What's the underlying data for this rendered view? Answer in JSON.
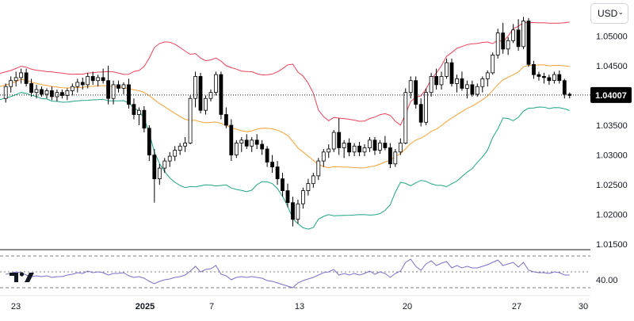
{
  "header": {
    "currency": "USD",
    "currency_icon": "chevron-down-icon"
  },
  "colors": {
    "up_candle": "#ffffff",
    "down_candle": "#000000",
    "candle_outline": "#000000",
    "bb_upper": "#e8415a",
    "bb_middle": "#f6a135",
    "bb_lower": "#1fa486",
    "rsi": "#7b6fc8",
    "last_price_tag": "#000000",
    "grid_dashed": "#555555"
  },
  "chart_data": [
    {
      "type": "candlestick",
      "instrument_quote": "USD",
      "y_axis_side": "right",
      "y_ticks": [
        "1.05000",
        "1.04500",
        "1.03500",
        "1.03000",
        "1.02500",
        "1.02000",
        "1.01500"
      ],
      "ylim": [
        1.0145,
        1.0555
      ],
      "last_price": "1.04007",
      "x_ticks": [
        "23",
        "2025",
        "7",
        "13",
        "20",
        "27",
        "30"
      ],
      "indicators": [
        "Bollinger Bands"
      ],
      "candles": [
        [
          1.0395,
          1.042,
          1.0388,
          1.0415
        ],
        [
          1.0415,
          1.0432,
          1.0405,
          1.0425
        ],
        [
          1.0425,
          1.044,
          1.0415,
          1.043
        ],
        [
          1.043,
          1.0445,
          1.042,
          1.0438
        ],
        [
          1.0438,
          1.0445,
          1.0415,
          1.042
        ],
        [
          1.042,
          1.0428,
          1.0398,
          1.0405
        ],
        [
          1.0405,
          1.0418,
          1.0395,
          1.041
        ],
        [
          1.041,
          1.0415,
          1.0398,
          1.0402
        ],
        [
          1.0402,
          1.0412,
          1.0395,
          1.0408
        ],
        [
          1.0408,
          1.0415,
          1.0392,
          1.0398
        ],
        [
          1.0398,
          1.041,
          1.039,
          1.0405
        ],
        [
          1.0405,
          1.041,
          1.0395,
          1.04
        ],
        [
          1.04,
          1.0412,
          1.0392,
          1.0408
        ],
        [
          1.0408,
          1.042,
          1.04,
          1.0415
        ],
        [
          1.0415,
          1.0428,
          1.0405,
          1.0422
        ],
        [
          1.0422,
          1.043,
          1.041,
          1.0418
        ],
        [
          1.0418,
          1.0438,
          1.0412,
          1.0432
        ],
        [
          1.0432,
          1.044,
          1.0418,
          1.0425
        ],
        [
          1.0425,
          1.0435,
          1.0415,
          1.043
        ],
        [
          1.043,
          1.0445,
          1.042,
          1.0425
        ],
        [
          1.0425,
          1.045,
          1.0385,
          1.0395
        ],
        [
          1.0395,
          1.0425,
          1.0385,
          1.0418
        ],
        [
          1.0418,
          1.0425,
          1.0405,
          1.0412
        ],
        [
          1.0412,
          1.0422,
          1.0402,
          1.0418
        ],
        [
          1.0418,
          1.0428,
          1.0378,
          1.0385
        ],
        [
          1.0385,
          1.0395,
          1.036,
          1.0368
        ],
        [
          1.0368,
          1.038,
          1.035,
          1.0375
        ],
        [
          1.0375,
          1.0382,
          1.0338,
          1.0345
        ],
        [
          1.0345,
          1.035,
          1.029,
          1.03
        ],
        [
          1.03,
          1.031,
          1.022,
          1.026
        ],
        [
          1.026,
          1.0285,
          1.025,
          1.0278
        ],
        [
          1.0278,
          1.0295,
          1.027,
          1.029
        ],
        [
          1.029,
          1.0305,
          1.028,
          1.0298
        ],
        [
          1.0298,
          1.0315,
          1.029,
          1.0308
        ],
        [
          1.0308,
          1.032,
          1.03,
          1.0315
        ],
        [
          1.0315,
          1.033,
          1.0305,
          1.032
        ],
        [
          1.032,
          1.04,
          1.0318,
          1.0395
        ],
        [
          1.0395,
          1.044,
          1.038,
          1.0432
        ],
        [
          1.0432,
          1.0438,
          1.037,
          1.0375
        ],
        [
          1.0375,
          1.04,
          1.0368,
          1.0395
        ],
        [
          1.0395,
          1.041,
          1.039,
          1.0405
        ],
        [
          1.0405,
          1.044,
          1.04,
          1.0435
        ],
        [
          1.0435,
          1.044,
          1.036,
          1.0368
        ],
        [
          1.0368,
          1.038,
          1.0345,
          1.035
        ],
        [
          1.035,
          1.036,
          1.029,
          1.03
        ],
        [
          1.03,
          1.0325,
          1.0295,
          1.032
        ],
        [
          1.032,
          1.033,
          1.0305,
          1.0325
        ],
        [
          1.0325,
          1.0335,
          1.031,
          1.0315
        ],
        [
          1.0315,
          1.033,
          1.0305,
          1.0325
        ],
        [
          1.0325,
          1.0335,
          1.031,
          1.0318
        ],
        [
          1.0318,
          1.0325,
          1.03,
          1.031
        ],
        [
          1.031,
          1.0315,
          1.028,
          1.0288
        ],
        [
          1.0288,
          1.03,
          1.027,
          1.028
        ],
        [
          1.028,
          1.029,
          1.025,
          1.026
        ],
        [
          1.026,
          1.027,
          1.023,
          1.024
        ],
        [
          1.024,
          1.0252,
          1.0212,
          1.022
        ],
        [
          1.022,
          1.023,
          1.018,
          1.0192
        ],
        [
          1.0192,
          1.0225,
          1.0185,
          1.0218
        ],
        [
          1.0218,
          1.0245,
          1.021,
          1.024
        ],
        [
          1.024,
          1.026,
          1.0232,
          1.0252
        ],
        [
          1.0252,
          1.027,
          1.0245,
          1.0265
        ],
        [
          1.0265,
          1.0295,
          1.0258,
          1.029
        ],
        [
          1.029,
          1.031,
          1.028,
          1.0305
        ],
        [
          1.0305,
          1.0318,
          1.0295,
          1.031
        ],
        [
          1.031,
          1.0342,
          1.0305,
          1.0338
        ],
        [
          1.0338,
          1.0362,
          1.03,
          1.0312
        ],
        [
          1.0312,
          1.0325,
          1.0295,
          1.032
        ],
        [
          1.032,
          1.0328,
          1.0298,
          1.0305
        ],
        [
          1.0305,
          1.032,
          1.0298,
          1.0315
        ],
        [
          1.0315,
          1.0322,
          1.0298,
          1.0305
        ],
        [
          1.0305,
          1.0318,
          1.0298,
          1.0312
        ],
        [
          1.0312,
          1.033,
          1.0305,
          1.0325
        ],
        [
          1.0325,
          1.033,
          1.03,
          1.0308
        ],
        [
          1.0308,
          1.0325,
          1.0302,
          1.032
        ],
        [
          1.032,
          1.0332,
          1.0308,
          1.0312
        ],
        [
          1.0312,
          1.032,
          1.0278,
          1.0285
        ],
        [
          1.0285,
          1.031,
          1.028,
          1.0305
        ],
        [
          1.0305,
          1.0328,
          1.03,
          1.032
        ],
        [
          1.032,
          1.0412,
          1.0318,
          1.0405
        ],
        [
          1.0405,
          1.0432,
          1.0395,
          1.0425
        ],
        [
          1.0425,
          1.0432,
          1.0378,
          1.0385
        ],
        [
          1.0385,
          1.0395,
          1.0348,
          1.0355
        ],
        [
          1.0355,
          1.0412,
          1.035,
          1.0405
        ],
        [
          1.0405,
          1.0438,
          1.0398,
          1.0432
        ],
        [
          1.0432,
          1.0445,
          1.041,
          1.0418
        ],
        [
          1.0418,
          1.044,
          1.041,
          1.0432
        ],
        [
          1.0432,
          1.0462,
          1.0428,
          1.0455
        ],
        [
          1.0455,
          1.0462,
          1.0415,
          1.042
        ],
        [
          1.042,
          1.0435,
          1.0405,
          1.0428
        ],
        [
          1.0428,
          1.044,
          1.0408,
          1.0412
        ],
        [
          1.0412,
          1.0425,
          1.0395,
          1.0418
        ],
        [
          1.0418,
          1.0425,
          1.0398,
          1.0402
        ],
        [
          1.0402,
          1.042,
          1.0398,
          1.0415
        ],
        [
          1.0415,
          1.0432,
          1.0405,
          1.0428
        ],
        [
          1.0428,
          1.0442,
          1.0415,
          1.0438
        ],
        [
          1.0438,
          1.0472,
          1.0435,
          1.0468
        ],
        [
          1.0468,
          1.0512,
          1.0462,
          1.0505
        ],
        [
          1.0505,
          1.0522,
          1.047,
          1.0478
        ],
        [
          1.0478,
          1.0498,
          1.0468,
          1.0492
        ],
        [
          1.0492,
          1.052,
          1.0488,
          1.051
        ],
        [
          1.051,
          1.0528,
          1.0475,
          1.0482
        ],
        [
          1.0482,
          1.0532,
          1.0478,
          1.0525
        ],
        [
          1.0525,
          1.053,
          1.0448,
          1.0452
        ],
        [
          1.0452,
          1.0458,
          1.0428,
          1.0435
        ],
        [
          1.0435,
          1.044,
          1.0425,
          1.0432
        ],
        [
          1.0432,
          1.0438,
          1.042,
          1.043
        ],
        [
          1.043,
          1.0435,
          1.0418,
          1.0425
        ],
        [
          1.0425,
          1.044,
          1.042,
          1.0435
        ],
        [
          1.0435,
          1.0442,
          1.042,
          1.0425
        ],
        [
          1.0425,
          1.0428,
          1.0395,
          1.0402
        ],
        [
          1.0402,
          1.0405,
          1.0395,
          1.04
        ]
      ]
    },
    {
      "type": "line",
      "indicator": "RSI",
      "y_ticks": [
        "40.00"
      ],
      "levels": [
        70,
        50,
        30
      ],
      "ylim": [
        25,
        75
      ],
      "values": [
        47,
        48,
        50,
        49,
        46,
        44,
        45,
        44,
        45,
        43,
        44,
        44,
        46,
        47,
        49,
        48,
        51,
        49,
        50,
        49,
        46,
        48,
        48,
        49,
        45,
        43,
        44,
        42,
        38,
        35,
        38,
        40,
        41,
        43,
        44,
        46,
        51,
        57,
        50,
        53,
        54,
        58,
        47,
        45,
        40,
        43,
        44,
        43,
        44,
        43,
        42,
        39,
        38,
        36,
        34,
        32,
        30,
        36,
        39,
        41,
        43,
        46,
        49,
        50,
        53,
        46,
        48,
        46,
        48,
        46,
        48,
        51,
        47,
        50,
        48,
        43,
        48,
        51,
        62,
        66,
        57,
        52,
        60,
        64,
        58,
        61,
        63,
        55,
        58,
        55,
        57,
        55,
        55,
        57,
        59,
        62,
        65,
        58,
        60,
        62,
        56,
        62,
        52,
        50,
        49,
        49,
        48,
        50,
        49,
        46,
        46
      ]
    }
  ]
}
